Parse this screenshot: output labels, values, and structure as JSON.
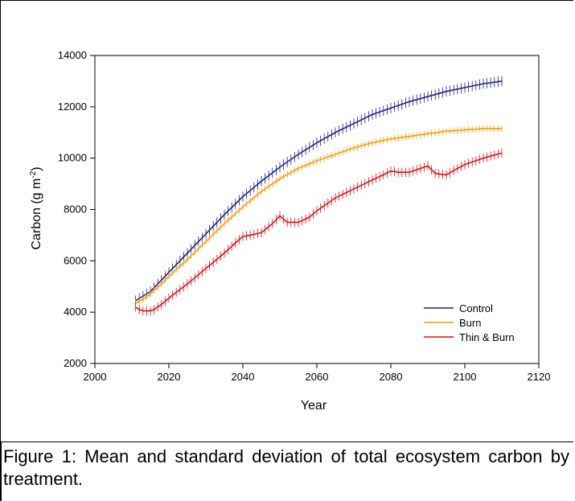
{
  "caption": "Figure 1: Mean and standard deviation of total ecosystem carbon by treatment.",
  "chart_data": {
    "type": "line",
    "title": "",
    "xlabel": "Year",
    "ylabel_main": "Carbon (g m",
    "ylabel_sup": "-2",
    "ylabel_end": ")",
    "xlim": [
      2000,
      2120
    ],
    "ylim": [
      2000,
      14000
    ],
    "xticks": [
      2000,
      2020,
      2040,
      2060,
      2080,
      2100,
      2120
    ],
    "yticks": [
      2000,
      4000,
      6000,
      8000,
      10000,
      12000,
      14000
    ],
    "grid": false,
    "legend_position": "bottom-right",
    "error_bars": "standard deviation",
    "series": [
      {
        "name": "Control",
        "color": "#1f1f8f",
        "x": [
          2011,
          2013,
          2015,
          2016,
          2018,
          2020,
          2025,
          2030,
          2035,
          2040,
          2045,
          2050,
          2055,
          2060,
          2065,
          2070,
          2075,
          2080,
          2085,
          2090,
          2095,
          2100,
          2105,
          2110
        ],
        "y": [
          4450,
          4620,
          4800,
          4950,
          5250,
          5550,
          6300,
          7050,
          7800,
          8500,
          9100,
          9650,
          10150,
          10600,
          11000,
          11350,
          11700,
          11950,
          12200,
          12400,
          12600,
          12750,
          12900,
          13000
        ],
        "sd": 200
      },
      {
        "name": "Burn",
        "color": "#ff9900",
        "x": [
          2011,
          2013,
          2015,
          2016,
          2018,
          2020,
          2025,
          2030,
          2035,
          2040,
          2045,
          2050,
          2055,
          2060,
          2065,
          2070,
          2075,
          2080,
          2085,
          2090,
          2095,
          2100,
          2105,
          2110
        ],
        "y": [
          4350,
          4500,
          4700,
          4850,
          5100,
          5400,
          6050,
          6750,
          7450,
          8100,
          8700,
          9200,
          9600,
          9900,
          10150,
          10400,
          10600,
          10750,
          10850,
          10950,
          11050,
          11100,
          11150,
          11150
        ],
        "sd": 130
      },
      {
        "name": "Thin & Burn",
        "color": "#e01010",
        "x": [
          2011,
          2012,
          2013,
          2015,
          2016,
          2018,
          2020,
          2025,
          2030,
          2035,
          2038,
          2040,
          2042,
          2045,
          2048,
          2050,
          2052,
          2055,
          2058,
          2060,
          2065,
          2070,
          2075,
          2078,
          2080,
          2082,
          2085,
          2088,
          2090,
          2092,
          2095,
          2098,
          2100,
          2105,
          2110
        ],
        "y": [
          4200,
          4100,
          4050,
          4050,
          4100,
          4300,
          4550,
          5100,
          5700,
          6300,
          6700,
          6950,
          7000,
          7100,
          7450,
          7750,
          7500,
          7500,
          7700,
          7950,
          8450,
          8800,
          9150,
          9350,
          9500,
          9450,
          9450,
          9600,
          9700,
          9400,
          9350,
          9600,
          9750,
          10000,
          10200
        ],
        "sd": 180
      }
    ]
  }
}
